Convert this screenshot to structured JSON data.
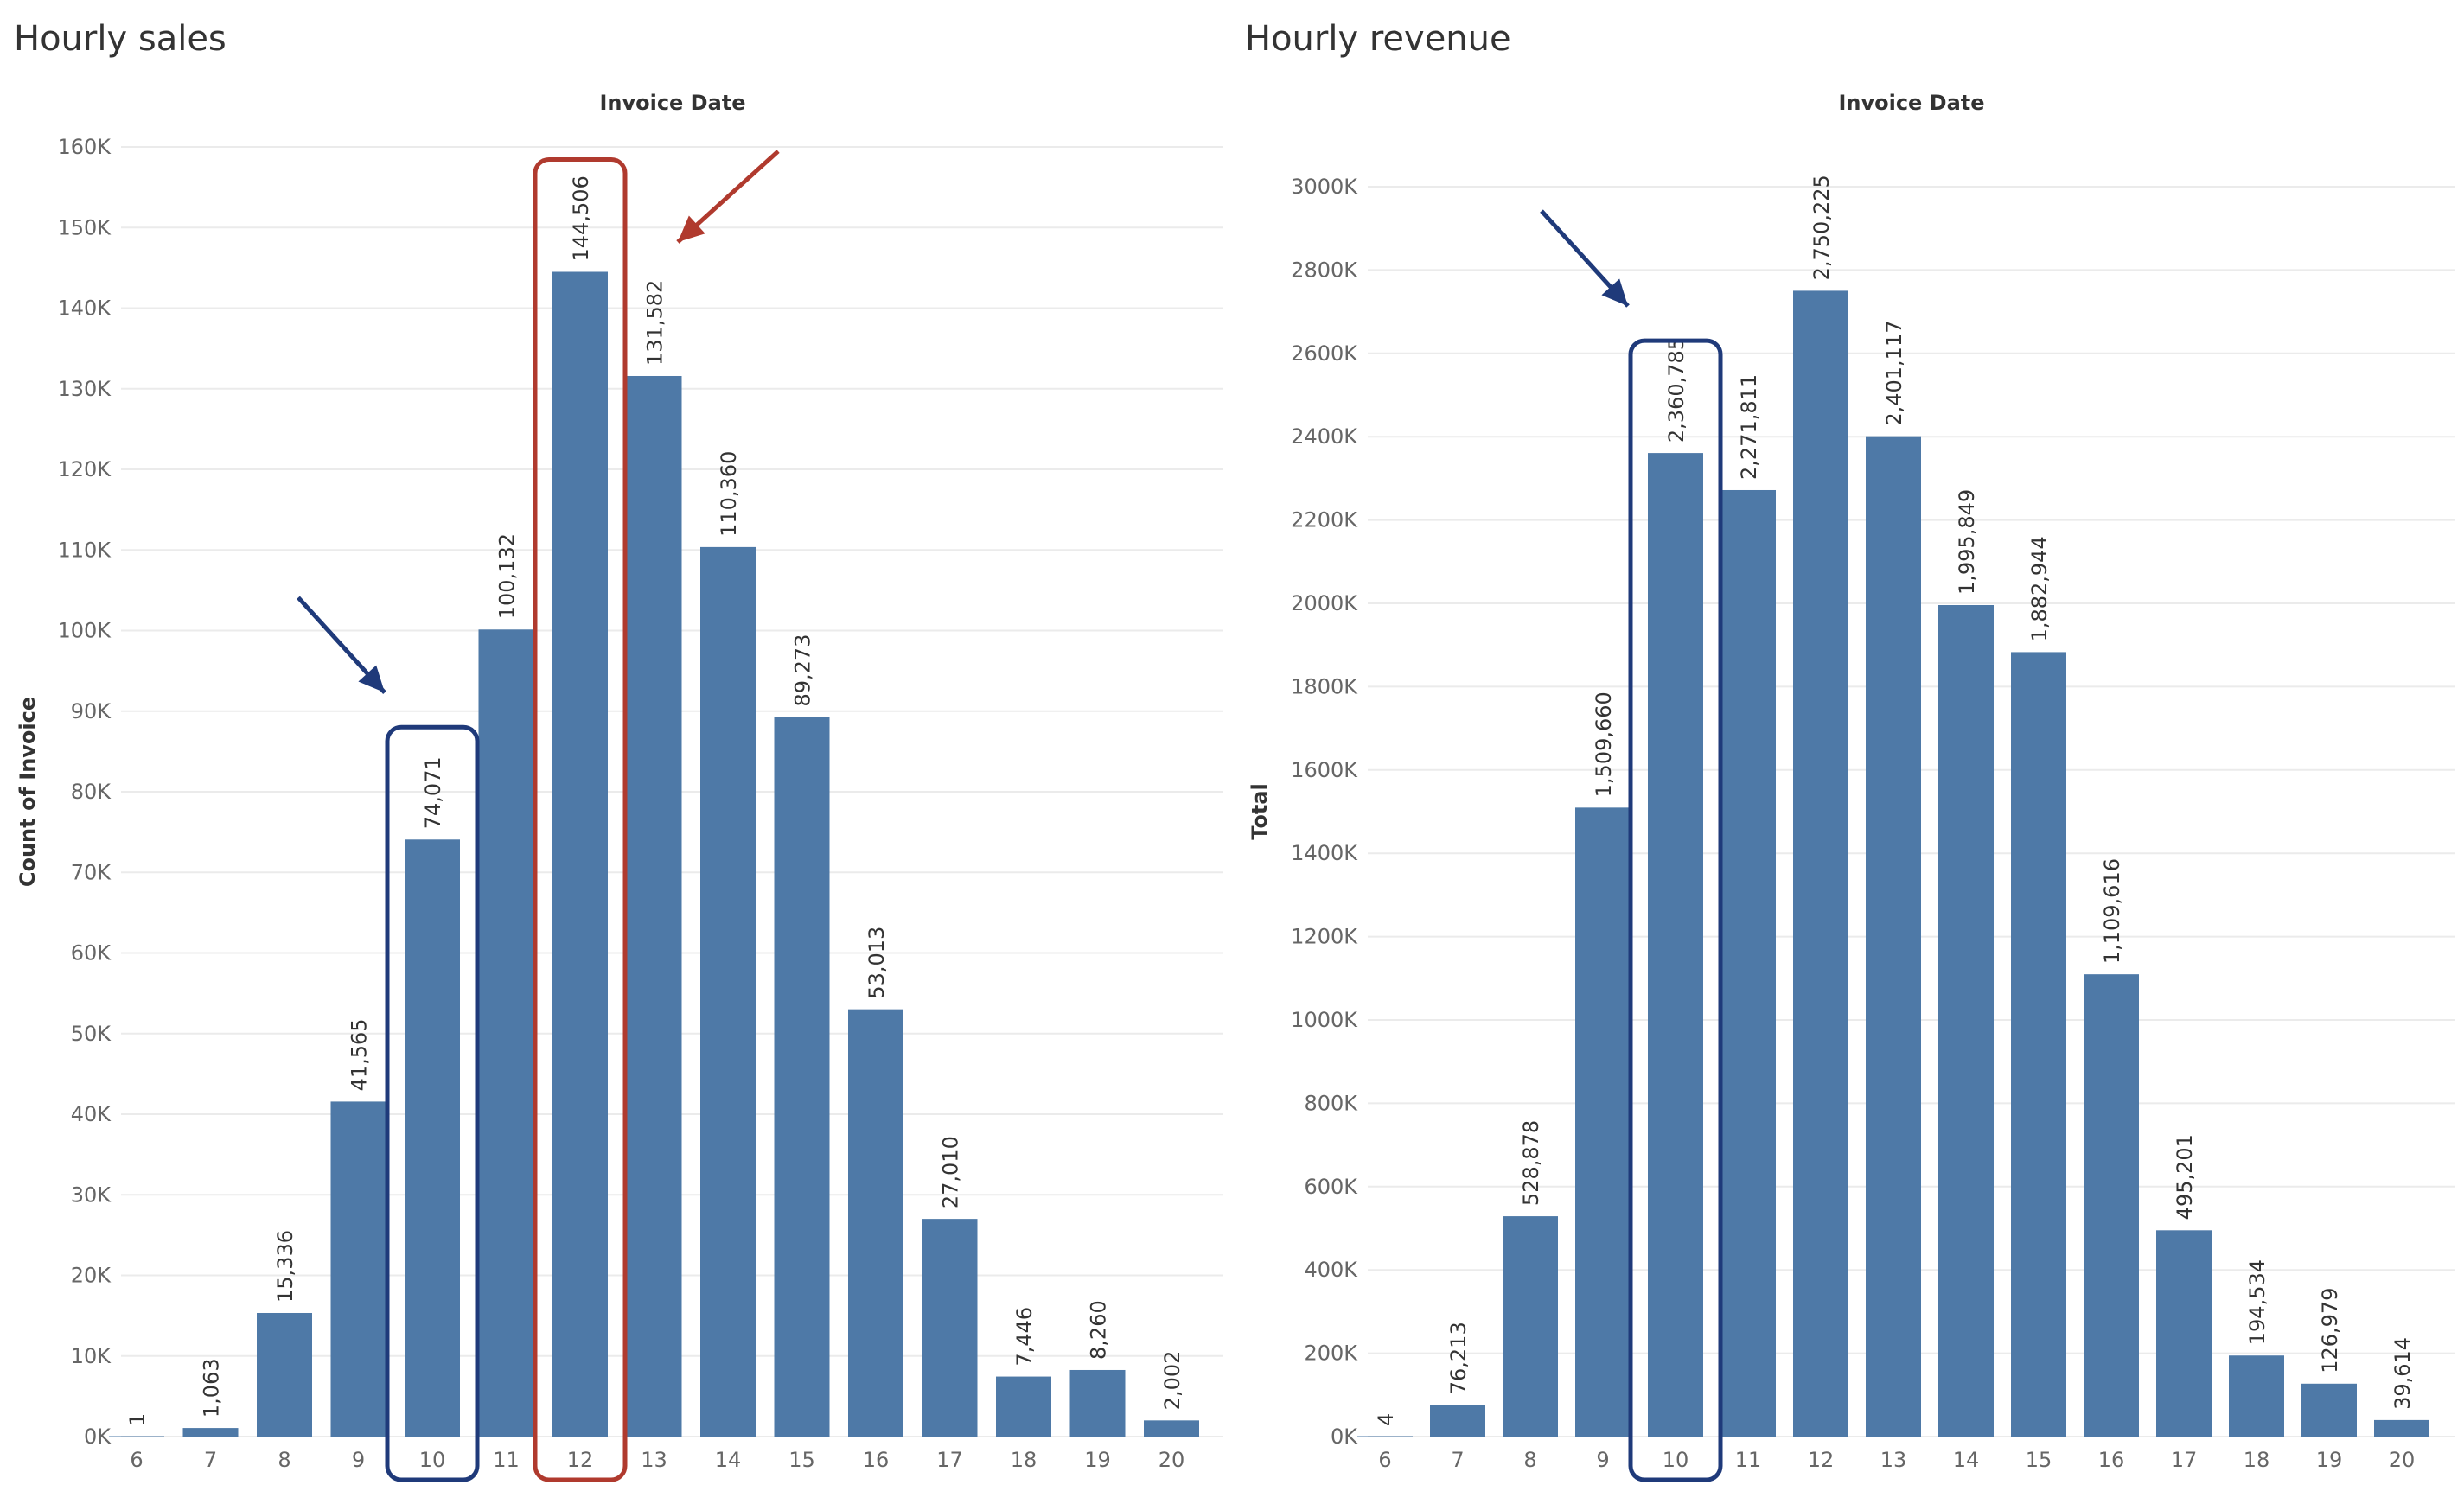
{
  "colors": {
    "bar": "#4e79a7",
    "grid": "#ebebeb",
    "text": "#666666",
    "highlight_blue": "#1f3a7a",
    "highlight_red": "#b03a2e"
  },
  "chart_data": [
    {
      "type": "bar",
      "title": "Hourly sales",
      "xlabel": "Invoice Date",
      "ylabel": "Count of Invoice",
      "categories": [
        "6",
        "7",
        "8",
        "9",
        "10",
        "11",
        "12",
        "13",
        "14",
        "15",
        "16",
        "17",
        "18",
        "19",
        "20"
      ],
      "values": [
        1,
        1063,
        15336,
        41565,
        74071,
        100132,
        144506,
        131582,
        110360,
        89273,
        53013,
        27010,
        7446,
        8260,
        2002
      ],
      "data_labels": [
        "1",
        "1,063",
        "15,336",
        "41,565",
        "74,071",
        "100,132",
        "144,506",
        "131,582",
        "110,360",
        "89,273",
        "53,013",
        "27,010",
        "7,446",
        "8,260",
        "2,002"
      ],
      "ylim": [
        0,
        160000
      ],
      "yticks": [
        0,
        10000,
        20000,
        30000,
        40000,
        50000,
        60000,
        70000,
        80000,
        90000,
        100000,
        110000,
        120000,
        130000,
        140000,
        150000,
        160000
      ],
      "ytick_labels": [
        "0K",
        "10K",
        "20K",
        "30K",
        "40K",
        "50K",
        "60K",
        "70K",
        "80K",
        "90K",
        "100K",
        "110K",
        "120K",
        "130K",
        "140K",
        "150K",
        "160K"
      ],
      "grid": true,
      "annotations": [
        {
          "type": "box",
          "category": "10",
          "color": "blue"
        },
        {
          "type": "arrow",
          "category": "10",
          "color": "blue"
        },
        {
          "type": "box",
          "category": "12",
          "color": "red"
        },
        {
          "type": "arrow",
          "category": "12",
          "color": "red"
        }
      ]
    },
    {
      "type": "bar",
      "title": "Hourly revenue",
      "xlabel": "Invoice Date",
      "ylabel": "Total",
      "categories": [
        "6",
        "7",
        "8",
        "9",
        "10",
        "11",
        "12",
        "13",
        "14",
        "15",
        "16",
        "17",
        "18",
        "19",
        "20"
      ],
      "values": [
        4,
        76213,
        528878,
        1509660,
        2360785,
        2271811,
        2750225,
        2401117,
        1995849,
        1882944,
        1109616,
        495201,
        194534,
        126979,
        39614
      ],
      "data_labels": [
        "4",
        "76,213",
        "528,878",
        "1,509,660",
        "2,360,785",
        "2,271,811",
        "2,750,225",
        "2,401,117",
        "1,995,849",
        "1,882,944",
        "1,109,616",
        "495,201",
        "194,534",
        "126,979",
        "39,614"
      ],
      "ylim": [
        0,
        3000000
      ],
      "yticks": [
        0,
        200000,
        400000,
        600000,
        800000,
        1000000,
        1200000,
        1400000,
        1600000,
        1800000,
        2000000,
        2200000,
        2400000,
        2600000,
        2800000,
        3000000
      ],
      "ytick_labels": [
        "0K",
        "200K",
        "400K",
        "600K",
        "800K",
        "1000K",
        "1200K",
        "1400K",
        "1600K",
        "1800K",
        "2000K",
        "2200K",
        "2400K",
        "2600K",
        "2800K",
        "3000K"
      ],
      "grid": true,
      "annotations": [
        {
          "type": "box",
          "category": "10",
          "color": "blue"
        },
        {
          "type": "arrow",
          "category": "10",
          "color": "blue"
        }
      ]
    }
  ]
}
